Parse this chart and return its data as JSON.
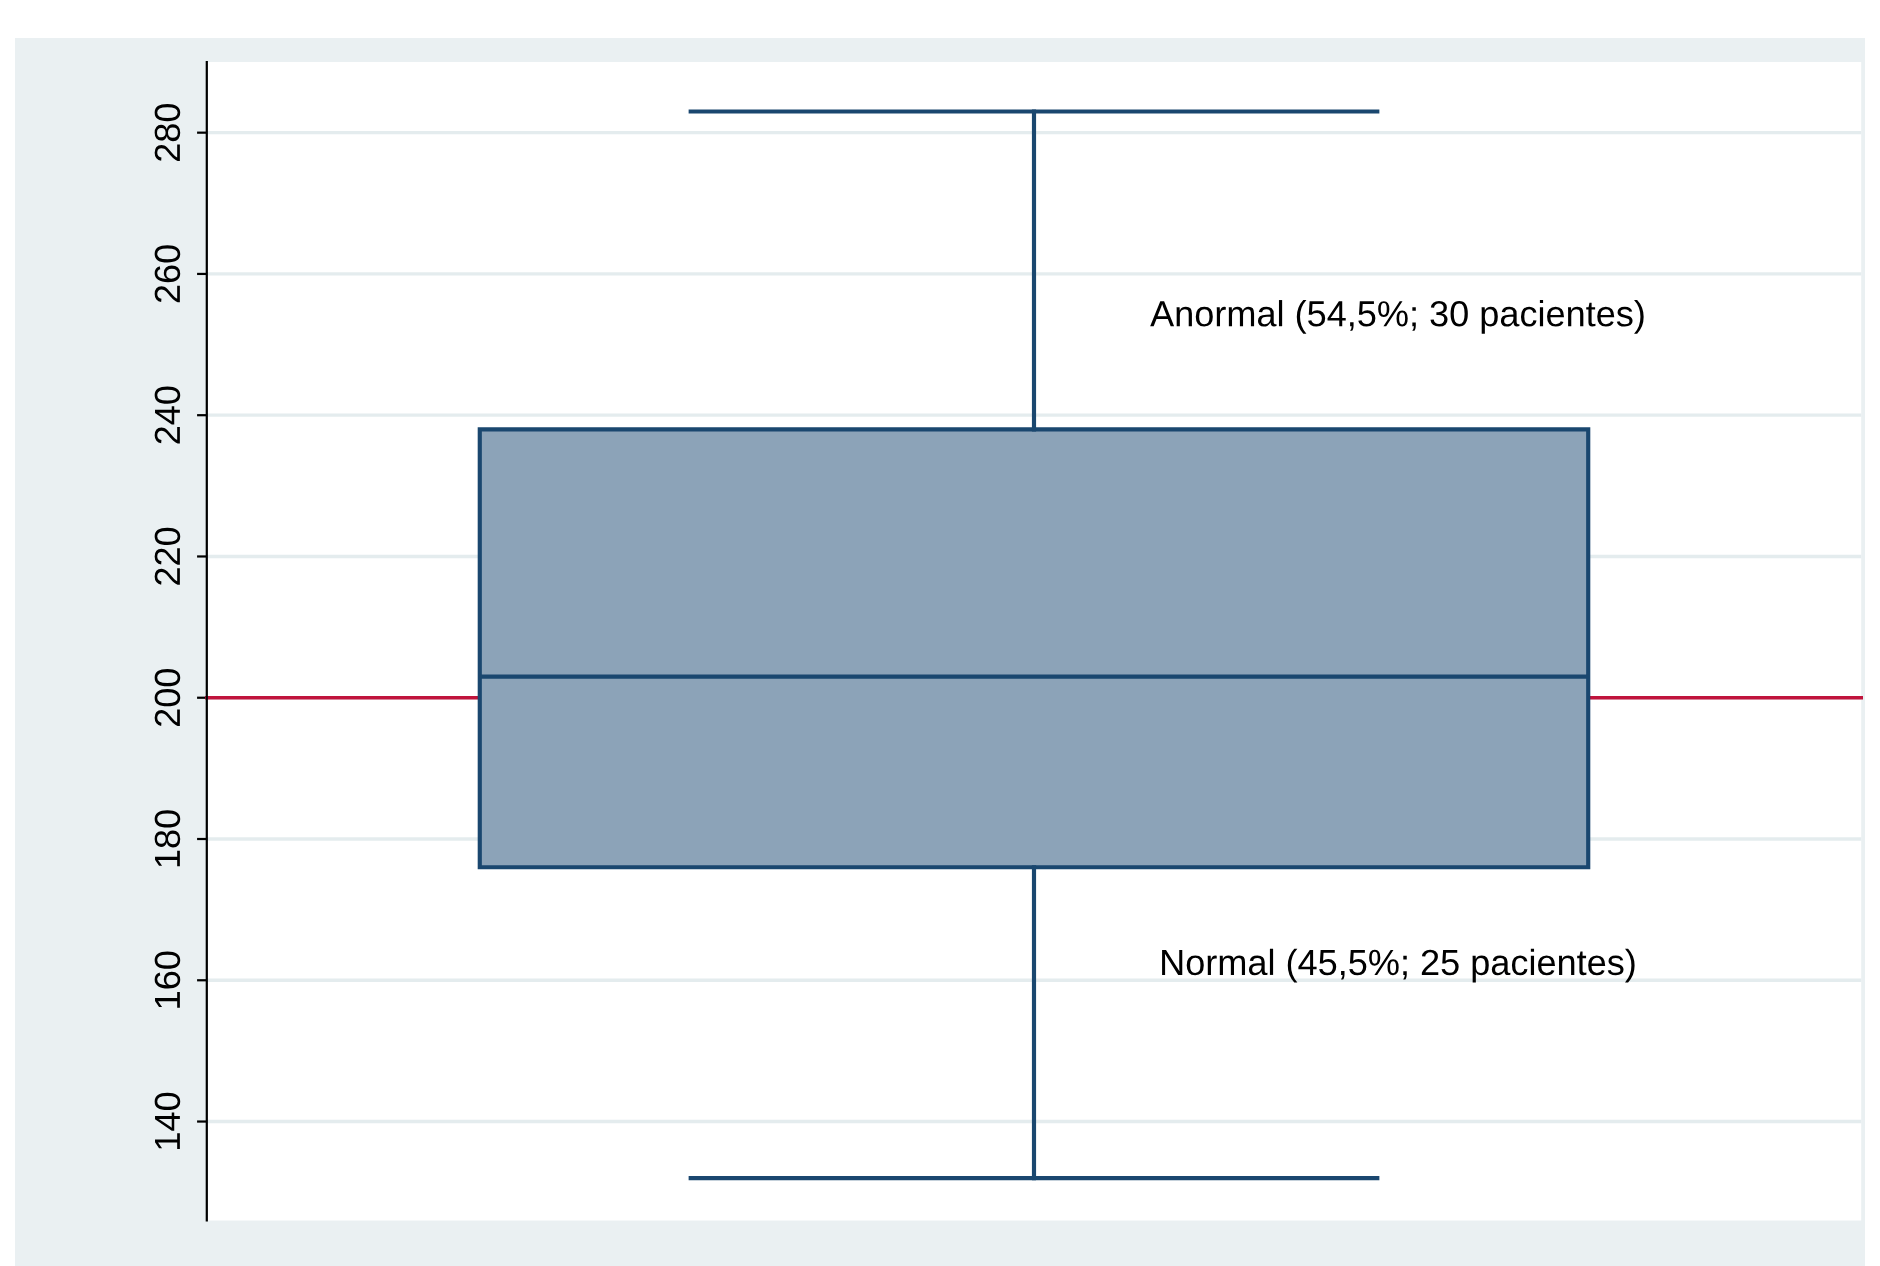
{
  "chart_data": {
    "type": "box",
    "categories": [
      null
    ],
    "color": "#8ca3b8",
    "boxes": [
      {
        "low": 132,
        "q1": 176,
        "median": 203,
        "q3": 238,
        "high": 283
      }
    ],
    "ylim": [
      126,
      290
    ],
    "yticks": [
      140,
      160,
      180,
      200,
      220,
      240,
      260,
      280
    ],
    "grid": "y",
    "ref_lines": [
      {
        "axis": "y",
        "value": 200,
        "color": "#c0143c"
      }
    ],
    "annotations": [
      "Anormal (54,5%; 30 pacientes)",
      "Normal (45,5%; 25 pacientes)"
    ]
  }
}
